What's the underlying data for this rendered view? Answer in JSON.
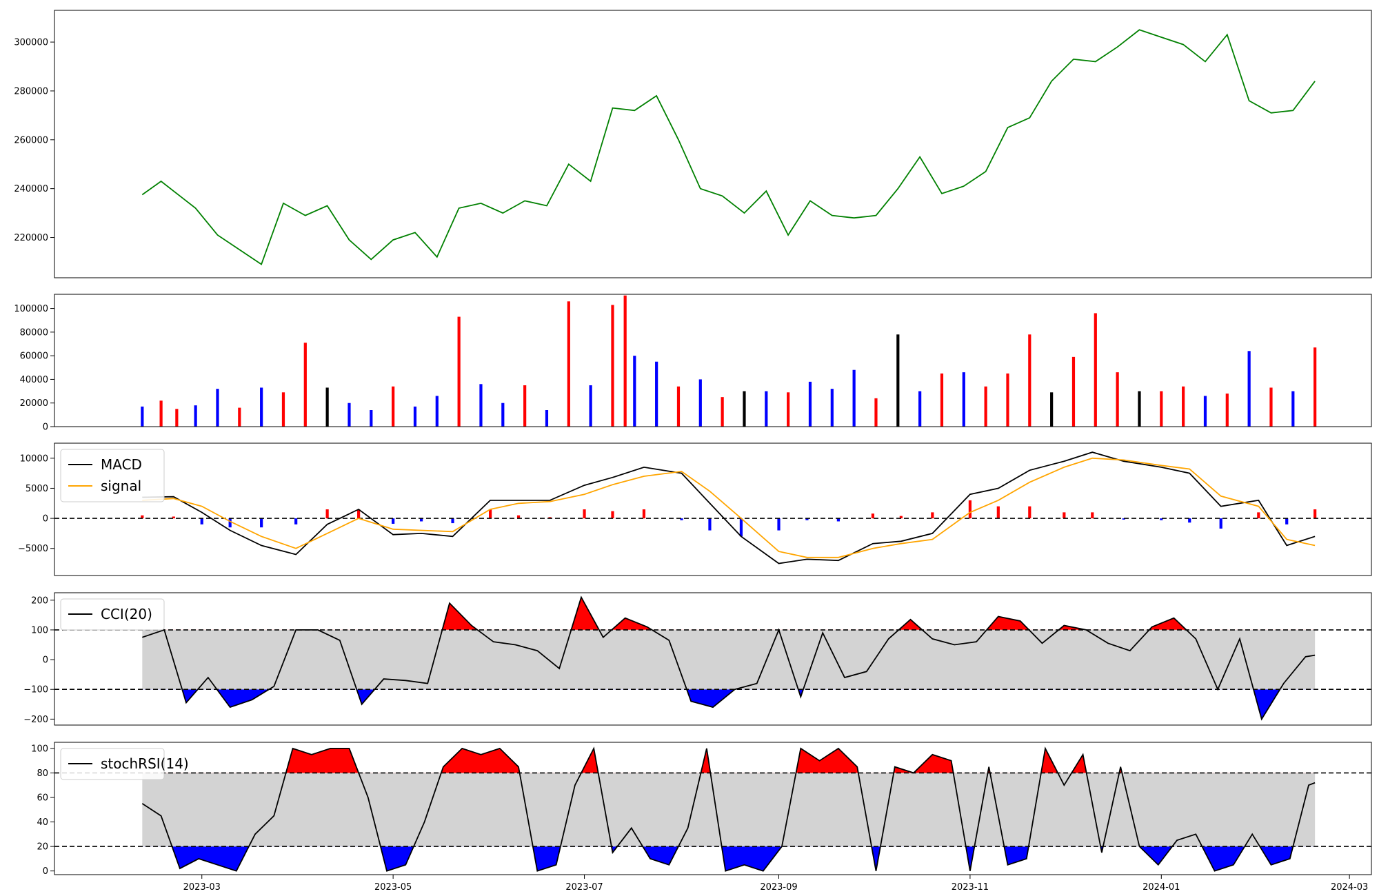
{
  "figure": {
    "background": "#ffffff"
  },
  "x_axis": {
    "range": [
      "2023-01-13",
      "2024-03-08"
    ],
    "ticks": [
      {
        "date": "2023-03-01",
        "label": "2023-03"
      },
      {
        "date": "2023-05-01",
        "label": "2023-05"
      },
      {
        "date": "2023-07-01",
        "label": "2023-07"
      },
      {
        "date": "2023-09-01",
        "label": "2023-09"
      },
      {
        "date": "2023-11-01",
        "label": "2023-11"
      },
      {
        "date": "2024-01-01",
        "label": "2024-01"
      },
      {
        "date": "2024-03-01",
        "label": "2024-03"
      }
    ]
  },
  "chart_data": [
    {
      "type": "line",
      "panel": "price",
      "color": "#008000",
      "ylim": [
        203500,
        313000
      ],
      "yticks": [
        {
          "value": 220000,
          "label": "220000"
        },
        {
          "value": 240000,
          "label": "240000"
        },
        {
          "value": 260000,
          "label": "260000"
        },
        {
          "value": 280000,
          "label": "280000"
        },
        {
          "value": 300000,
          "label": "300000"
        }
      ],
      "x": [
        "2023-02-10",
        "2023-02-16",
        "2023-02-21",
        "2023-02-27",
        "2023-03-06",
        "2023-03-13",
        "2023-03-20",
        "2023-03-27",
        "2023-04-03",
        "2023-04-10",
        "2023-04-17",
        "2023-04-24",
        "2023-05-01",
        "2023-05-08",
        "2023-05-15",
        "2023-05-22",
        "2023-05-29",
        "2023-06-05",
        "2023-06-12",
        "2023-06-19",
        "2023-06-26",
        "2023-07-03",
        "2023-07-10",
        "2023-07-17",
        "2023-07-24",
        "2023-07-31",
        "2023-08-07",
        "2023-08-14",
        "2023-08-21",
        "2023-08-28",
        "2023-09-04",
        "2023-09-11",
        "2023-09-18",
        "2023-09-25",
        "2023-10-02",
        "2023-10-09",
        "2023-10-16",
        "2023-10-23",
        "2023-10-30",
        "2023-11-06",
        "2023-11-13",
        "2023-11-20",
        "2023-11-27",
        "2023-12-04",
        "2023-12-11",
        "2023-12-18",
        "2023-12-25",
        "2024-01-01",
        "2024-01-08",
        "2024-01-15",
        "2024-01-22",
        "2024-01-29",
        "2024-02-05",
        "2024-02-12",
        "2024-02-19"
      ],
      "values": [
        237500,
        243000,
        238000,
        232000,
        221000,
        215000,
        209000,
        234000,
        229000,
        233000,
        219000,
        211000,
        219000,
        222000,
        212000,
        232000,
        234000,
        230000,
        235000,
        233000,
        250000,
        243000,
        273000,
        272000,
        278000,
        260000,
        240000,
        237000,
        230000,
        239000,
        221000,
        235000,
        229000,
        228000,
        229000,
        240000,
        253000,
        238000,
        241000,
        247000,
        265000,
        269000,
        284000,
        293000,
        292000,
        298000,
        305000,
        302000,
        299000,
        292000,
        303000,
        276000,
        271000,
        272000,
        284000
      ]
    },
    {
      "type": "bar",
      "panel": "volume",
      "colors": {
        "up": "#ff0000",
        "down": "#0000ff",
        "flat": "#000000"
      },
      "ylim": [
        0,
        112000
      ],
      "yticks": [
        {
          "value": 0,
          "label": "0"
        },
        {
          "value": 20000,
          "label": "20000"
        },
        {
          "value": 40000,
          "label": "40000"
        },
        {
          "value": 60000,
          "label": "60000"
        },
        {
          "value": 80000,
          "label": "80000"
        },
        {
          "value": 100000,
          "label": "100000"
        }
      ],
      "x": [
        "2023-02-10",
        "2023-02-16",
        "2023-02-21",
        "2023-02-27",
        "2023-03-06",
        "2023-03-13",
        "2023-03-20",
        "2023-03-27",
        "2023-04-03",
        "2023-04-10",
        "2023-04-17",
        "2023-04-24",
        "2023-05-01",
        "2023-05-08",
        "2023-05-15",
        "2023-05-22",
        "2023-05-29",
        "2023-06-05",
        "2023-06-12",
        "2023-06-19",
        "2023-06-26",
        "2023-07-03",
        "2023-07-10",
        "2023-07-14",
        "2023-07-17",
        "2023-07-24",
        "2023-07-31",
        "2023-08-07",
        "2023-08-14",
        "2023-08-21",
        "2023-08-28",
        "2023-09-04",
        "2023-09-11",
        "2023-09-18",
        "2023-09-25",
        "2023-10-02",
        "2023-10-09",
        "2023-10-16",
        "2023-10-23",
        "2023-10-30",
        "2023-11-06",
        "2023-11-13",
        "2023-11-20",
        "2023-11-27",
        "2023-12-04",
        "2023-12-11",
        "2023-12-18",
        "2023-12-25",
        "2024-01-01",
        "2024-01-08",
        "2024-01-15",
        "2024-01-22",
        "2024-01-29",
        "2024-02-05",
        "2024-02-12",
        "2024-02-19"
      ],
      "values": [
        17000,
        22000,
        15000,
        18000,
        32000,
        16000,
        33000,
        29000,
        71000,
        33000,
        20000,
        14000,
        34000,
        17000,
        26000,
        93000,
        36000,
        20000,
        35000,
        14000,
        106000,
        35000,
        103000,
        111000,
        60000,
        55000,
        34000,
        40000,
        25000,
        30000,
        30000,
        29000,
        38000,
        32000,
        48000,
        24000,
        78000,
        30000,
        45000,
        46000,
        34000,
        45000,
        78000,
        29000,
        59000,
        96000,
        46000,
        30000,
        30000,
        34000,
        26000,
        28000,
        64000,
        33000,
        30000,
        67000
      ],
      "direction": [
        "down",
        "up",
        "up",
        "down",
        "down",
        "up",
        "down",
        "up",
        "up",
        "flat",
        "down",
        "down",
        "up",
        "down",
        "down",
        "up",
        "down",
        "down",
        "up",
        "down",
        "up",
        "down",
        "up",
        "up",
        "down",
        "down",
        "up",
        "down",
        "up",
        "flat",
        "down",
        "up",
        "down",
        "down",
        "down",
        "up",
        "flat",
        "down",
        "up",
        "down",
        "up",
        "up",
        "up",
        "flat",
        "up",
        "up",
        "up",
        "flat",
        "up",
        "up",
        "down",
        "up",
        "down",
        "up",
        "down",
        "up"
      ]
    },
    {
      "type": "line",
      "panel": "macd",
      "ylim": [
        -9500,
        12500
      ],
      "yticks": [
        {
          "value": -5000,
          "label": "−5000"
        },
        {
          "value": 0,
          "label": "0"
        },
        {
          "value": 5000,
          "label": "5000"
        },
        {
          "value": 10000,
          "label": "10000"
        }
      ],
      "reference_lines": [
        0
      ],
      "hist_colors": {
        "positive": "#ff0000",
        "negative": "#0000ff"
      },
      "legend": {
        "location": "upper-left"
      },
      "x": [
        "2023-02-10",
        "2023-02-20",
        "2023-03-01",
        "2023-03-10",
        "2023-03-20",
        "2023-03-31",
        "2023-04-10",
        "2023-04-20",
        "2023-05-01",
        "2023-05-10",
        "2023-05-20",
        "2023-06-01",
        "2023-06-10",
        "2023-06-20",
        "2023-07-01",
        "2023-07-10",
        "2023-07-20",
        "2023-08-01",
        "2023-08-10",
        "2023-08-20",
        "2023-09-01",
        "2023-09-10",
        "2023-09-20",
        "2023-10-01",
        "2023-10-10",
        "2023-10-20",
        "2023-11-01",
        "2023-11-10",
        "2023-11-20",
        "2023-12-01",
        "2023-12-10",
        "2023-12-20",
        "2024-01-01",
        "2024-01-10",
        "2024-01-20",
        "2024-02-01",
        "2024-02-10",
        "2024-02-19"
      ],
      "series": [
        {
          "name": "MACD",
          "color": "#000000",
          "values": [
            3500,
            3600,
            1000,
            -2000,
            -4500,
            -6000,
            -1000,
            1500,
            -2700,
            -2500,
            -3000,
            3000,
            3000,
            3000,
            5500,
            6800,
            8500,
            7500,
            2500,
            -3000,
            -7500,
            -6800,
            -7000,
            -4200,
            -3800,
            -2500,
            4000,
            5000,
            8000,
            9500,
            11000,
            9500,
            8500,
            7500,
            2000,
            3000,
            -4500,
            -3000
          ]
        },
        {
          "name": "signal",
          "color": "#ffa500",
          "values": [
            3000,
            3300,
            2000,
            -500,
            -3000,
            -5000,
            -2500,
            0,
            -1800,
            -2000,
            -2200,
            1500,
            2500,
            2800,
            4000,
            5600,
            7000,
            7800,
            4500,
            0,
            -5500,
            -6500,
            -6500,
            -5000,
            -4200,
            -3500,
            1000,
            3000,
            6000,
            8500,
            10000,
            9700,
            8800,
            8200,
            3700,
            2000,
            -3500,
            -4500
          ]
        },
        {
          "name": "histogram",
          "color": "#ff0000",
          "values": [
            500,
            300,
            -1000,
            -1500,
            -1500,
            -1000,
            1500,
            1500,
            -900,
            -500,
            -800,
            1500,
            500,
            200,
            1500,
            1200,
            1500,
            -300,
            -2000,
            -3000,
            -2000,
            -300,
            -500,
            800,
            400,
            1000,
            3000,
            2000,
            2000,
            1000,
            1000,
            -200,
            -300,
            -700,
            -1700,
            1000,
            -1000,
            1500
          ]
        }
      ]
    },
    {
      "type": "line",
      "panel": "cci",
      "ylim": [
        -220,
        225
      ],
      "yticks": [
        {
          "value": -200,
          "label": "−200"
        },
        {
          "value": -100,
          "label": "−100"
        },
        {
          "value": 0,
          "label": "0"
        },
        {
          "value": 100,
          "label": "100"
        },
        {
          "value": 200,
          "label": "200"
        }
      ],
      "band": [
        -100,
        100
      ],
      "reference_lines": [
        100,
        -100
      ],
      "fill_colors": {
        "above": "#ff0000",
        "below": "#0000ff",
        "band": "#d3d3d3"
      },
      "legend": {
        "location": "upper-left"
      },
      "x": [
        "2023-02-10",
        "2023-02-17",
        "2023-02-24",
        "2023-03-03",
        "2023-03-10",
        "2023-03-17",
        "2023-03-24",
        "2023-03-31",
        "2023-04-07",
        "2023-04-14",
        "2023-04-21",
        "2023-04-28",
        "2023-05-05",
        "2023-05-12",
        "2023-05-19",
        "2023-05-26",
        "2023-06-02",
        "2023-06-09",
        "2023-06-16",
        "2023-06-23",
        "2023-06-30",
        "2023-07-07",
        "2023-07-14",
        "2023-07-21",
        "2023-07-28",
        "2023-08-04",
        "2023-08-11",
        "2023-08-18",
        "2023-08-25",
        "2023-09-01",
        "2023-09-08",
        "2023-09-15",
        "2023-09-22",
        "2023-09-29",
        "2023-10-06",
        "2023-10-13",
        "2023-10-20",
        "2023-10-27",
        "2023-11-03",
        "2023-11-10",
        "2023-11-17",
        "2023-11-24",
        "2023-12-01",
        "2023-12-08",
        "2023-12-15",
        "2023-12-22",
        "2023-12-29",
        "2024-01-05",
        "2024-01-12",
        "2024-01-19",
        "2024-01-26",
        "2024-02-02",
        "2024-02-09",
        "2024-02-16",
        "2024-02-19"
      ],
      "series": [
        {
          "name": "CCI(20)",
          "color": "#000000",
          "values": [
            75,
            100,
            -145,
            -60,
            -160,
            -135,
            -90,
            100,
            100,
            65,
            -150,
            -65,
            -70,
            -80,
            190,
            115,
            60,
            50,
            30,
            -30,
            210,
            75,
            140,
            110,
            65,
            -140,
            -160,
            -100,
            -80,
            100,
            -125,
            90,
            -60,
            -40,
            70,
            135,
            70,
            50,
            60,
            145,
            130,
            55,
            115,
            100,
            55,
            30,
            110,
            140,
            70,
            -100,
            70,
            -200,
            -80,
            10,
            15
          ]
        }
      ]
    },
    {
      "type": "line",
      "panel": "stochrsi",
      "ylim": [
        -3,
        105
      ],
      "yticks": [
        {
          "value": 0,
          "label": "0"
        },
        {
          "value": 20,
          "label": "20"
        },
        {
          "value": 40,
          "label": "40"
        },
        {
          "value": 60,
          "label": "60"
        },
        {
          "value": 80,
          "label": "80"
        },
        {
          "value": 100,
          "label": "100"
        }
      ],
      "band": [
        20,
        80
      ],
      "reference_lines": [
        80,
        20
      ],
      "fill_colors": {
        "above": "#ff0000",
        "below": "#0000ff",
        "band": "#d3d3d3"
      },
      "legend": {
        "location": "upper-left"
      },
      "x": [
        "2023-02-10",
        "2023-02-16",
        "2023-02-22",
        "2023-02-28",
        "2023-03-06",
        "2023-03-12",
        "2023-03-18",
        "2023-03-24",
        "2023-03-30",
        "2023-04-05",
        "2023-04-11",
        "2023-04-17",
        "2023-04-23",
        "2023-04-29",
        "2023-05-05",
        "2023-05-11",
        "2023-05-17",
        "2023-05-23",
        "2023-05-29",
        "2023-06-04",
        "2023-06-10",
        "2023-06-16",
        "2023-06-22",
        "2023-06-28",
        "2023-07-04",
        "2023-07-10",
        "2023-07-16",
        "2023-07-22",
        "2023-07-28",
        "2023-08-03",
        "2023-08-09",
        "2023-08-15",
        "2023-08-21",
        "2023-08-27",
        "2023-09-02",
        "2023-09-08",
        "2023-09-14",
        "2023-09-20",
        "2023-09-26",
        "2023-10-02",
        "2023-10-08",
        "2023-10-14",
        "2023-10-20",
        "2023-10-26",
        "2023-11-01",
        "2023-11-07",
        "2023-11-13",
        "2023-11-19",
        "2023-11-25",
        "2023-12-01",
        "2023-12-07",
        "2023-12-13",
        "2023-12-19",
        "2023-12-25",
        "2023-12-31",
        "2024-01-06",
        "2024-01-12",
        "2024-01-18",
        "2024-01-24",
        "2024-01-30",
        "2024-02-05",
        "2024-02-11",
        "2024-02-17",
        "2024-02-19"
      ],
      "series": [
        {
          "name": "stochRSI(14)",
          "color": "#000000",
          "values": [
            55,
            45,
            2,
            10,
            5,
            0,
            30,
            45,
            100,
            95,
            100,
            100,
            60,
            0,
            5,
            40,
            85,
            100,
            95,
            100,
            85,
            0,
            5,
            70,
            100,
            15,
            35,
            10,
            5,
            35,
            100,
            0,
            5,
            0,
            20,
            100,
            90,
            100,
            85,
            0,
            85,
            80,
            95,
            90,
            0,
            85,
            5,
            10,
            100,
            70,
            95,
            15,
            85,
            20,
            5,
            25,
            30,
            0,
            5,
            30,
            5,
            10,
            70,
            72
          ]
        }
      ]
    }
  ]
}
